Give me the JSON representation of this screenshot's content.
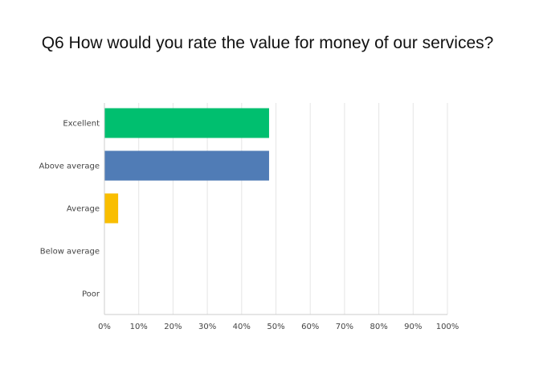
{
  "chart_data": {
    "type": "bar",
    "orientation": "horizontal",
    "title": "Q6 How would you rate the value for money of our services?",
    "categories": [
      "Excellent",
      "Above average",
      "Average",
      "Below average",
      "Poor"
    ],
    "values": [
      48,
      48,
      4,
      0,
      0
    ],
    "colors": [
      "#00BF6F",
      "#507CB6",
      "#F9BE00",
      "#6BC8CD",
      "#FF8B4F"
    ],
    "xlim": [
      0,
      100
    ],
    "xticks": [
      "0%",
      "10%",
      "20%",
      "30%",
      "40%",
      "50%",
      "60%",
      "70%",
      "80%",
      "90%",
      "100%"
    ],
    "grid": true,
    "legend": "none",
    "xlabel": "",
    "ylabel": ""
  },
  "style": {
    "grid_color": "#e5e5e5",
    "axis_color": "#cccccc"
  }
}
